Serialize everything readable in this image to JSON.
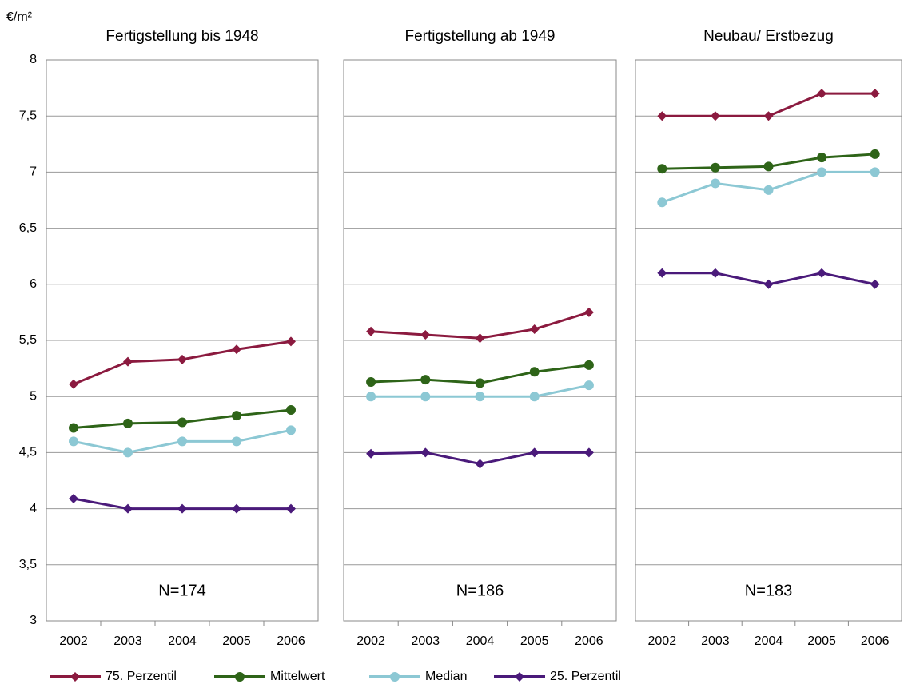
{
  "y_label": "€/m²",
  "chart_data": [
    {
      "type": "line",
      "title": "Fertigstellung bis 1948",
      "annotation": "N=174",
      "categories": [
        "2002",
        "2003",
        "2004",
        "2005",
        "2006"
      ],
      "series": [
        {
          "name": "75. Perzentil",
          "color": "#8b1a3f",
          "marker": "diamond",
          "values": [
            5.11,
            5.31,
            5.33,
            5.42,
            5.49
          ]
        },
        {
          "name": "Mittelwert",
          "color": "#2e6418",
          "marker": "circle",
          "values": [
            4.72,
            4.76,
            4.77,
            4.83,
            4.88
          ]
        },
        {
          "name": "Median",
          "color": "#8cc8d4",
          "marker": "circle",
          "values": [
            4.6,
            4.5,
            4.6,
            4.6,
            4.7
          ]
        },
        {
          "name": "25. Perzentil",
          "color": "#4a1a7a",
          "marker": "diamond",
          "values": [
            4.09,
            4.0,
            4.0,
            4.0,
            4.0
          ]
        }
      ],
      "ylim": [
        3,
        8
      ],
      "yticks": [
        3,
        {
          "value": 3.5,
          "label": "3,5"
        },
        4,
        {
          "value": 4.5,
          "label": "4,5"
        },
        5,
        {
          "value": 5.5,
          "label": "5,5"
        },
        6,
        {
          "value": 6.5,
          "label": "6,5"
        },
        7,
        {
          "value": 7.5,
          "label": "7,5"
        },
        8
      ],
      "grid": true
    },
    {
      "type": "line",
      "title": "Fertigstellung ab 1949",
      "annotation": "N=186",
      "categories": [
        "2002",
        "2003",
        "2004",
        "2005",
        "2006"
      ],
      "series": [
        {
          "color": "#8b1a3f",
          "marker": "diamond",
          "values": [
            5.58,
            5.55,
            5.52,
            5.6,
            5.75
          ]
        },
        {
          "color": "#2e6418",
          "marker": "circle",
          "values": [
            5.13,
            5.15,
            5.12,
            5.22,
            5.28
          ]
        },
        {
          "color": "#8cc8d4",
          "marker": "circle",
          "values": [
            5.0,
            5.0,
            5.0,
            5.0,
            5.1
          ]
        },
        {
          "color": "#4a1a7a",
          "marker": "diamond",
          "values": [
            4.49,
            4.5,
            4.4,
            4.5,
            4.5
          ]
        }
      ],
      "ylim": [
        3,
        8
      ],
      "yticks": [
        3,
        3.5,
        4,
        4.5,
        5,
        5.5,
        6,
        6.5,
        7,
        7.5,
        8
      ],
      "grid": true
    },
    {
      "type": "line",
      "title": "Neubau/ Erstbezug",
      "annotation": "N=183",
      "categories": [
        "2002",
        "2003",
        "2004",
        "2005",
        "2006"
      ],
      "series": [
        {
          "color": "#8b1a3f",
          "marker": "diamond",
          "values": [
            7.5,
            7.5,
            7.5,
            7.7,
            7.7
          ]
        },
        {
          "color": "#2e6418",
          "marker": "circle",
          "values": [
            7.03,
            7.04,
            7.05,
            7.13,
            7.16
          ]
        },
        {
          "color": "#8cc8d4",
          "marker": "circle",
          "values": [
            6.73,
            6.9,
            6.84,
            7.0,
            7.0
          ]
        },
        {
          "color": "#4a1a7a",
          "marker": "diamond",
          "values": [
            6.1,
            6.1,
            6.0,
            6.1,
            6.0
          ]
        }
      ],
      "ylim": [
        3,
        8
      ],
      "yticks": [
        3,
        3.5,
        4,
        4.5,
        5,
        5.5,
        6,
        6.5,
        7,
        7.5,
        8
      ],
      "grid": true
    }
  ]
}
